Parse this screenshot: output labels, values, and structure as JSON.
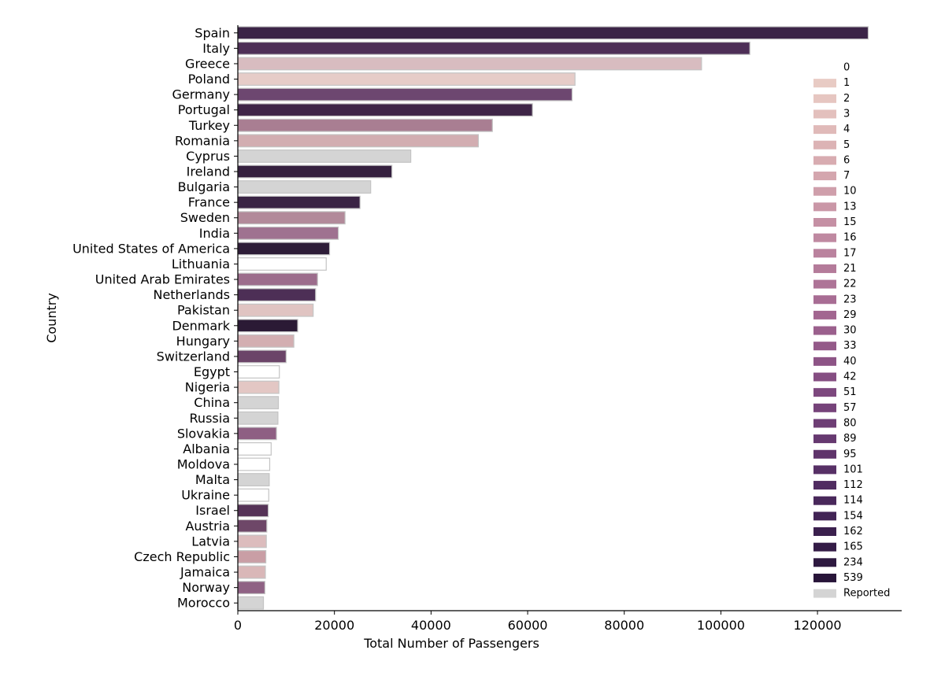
{
  "chart_data": {
    "type": "bar",
    "orientation": "horizontal",
    "xlabel": "Total Number of Passengers",
    "ylabel": "Country",
    "xlim": [
      0,
      136000
    ],
    "xticks": [
      0,
      20000,
      40000,
      60000,
      80000,
      100000,
      120000
    ],
    "xtick_labels": [
      "0",
      "20000",
      "40000",
      "60000",
      "80000",
      "100000",
      "120000"
    ],
    "grid": false,
    "legend_position": "right",
    "categories": [
      "Spain",
      "Italy",
      "Greece",
      "Poland",
      "Germany",
      "Portugal",
      "Turkey",
      "Romania",
      "Cyprus",
      "Ireland",
      "Bulgaria",
      "France",
      "Sweden",
      "India",
      "United States of America",
      "Lithuania",
      "United Arab Emirates",
      "Netherlands",
      "Pakistan",
      "Denmark",
      "Hungary",
      "Switzerland",
      "Egypt",
      "Nigeria",
      "China",
      "Russia",
      "Slovakia",
      "Albania",
      "Moldova",
      "Malta",
      "Ukraine",
      "Israel",
      "Austria",
      "Latvia",
      "Czech Republic",
      "Jamaica",
      "Norway",
      "Morocco"
    ],
    "values": [
      130500,
      106000,
      96000,
      69800,
      69200,
      61000,
      52700,
      49800,
      35800,
      31900,
      27500,
      25300,
      22200,
      20800,
      19000,
      18300,
      16500,
      16100,
      15600,
      12400,
      11600,
      10000,
      8600,
      8500,
      8400,
      8300,
      8000,
      6900,
      6600,
      6500,
      6400,
      6300,
      6000,
      5900,
      5800,
      5700,
      5600,
      5300
    ],
    "bar_colors": [
      "#3b2447",
      "#4e2f57",
      "#d8bcc0",
      "#e6ccc8",
      "#6d4770",
      "#3e2547",
      "#a97e92",
      "#d2adb1",
      "#d4d4d4",
      "#35203f",
      "#d4d4d4",
      "#3a2444",
      "#b28a9a",
      "#9f7290",
      "#2e1d38",
      "#ffffff",
      "#9c6d8c",
      "#4d2f56",
      "#e0c4c2",
      "#2b1a35",
      "#d3aeb1",
      "#6b4468",
      "#ffffff",
      "#e3c7c4",
      "#d4d4d4",
      "#d4d4d4",
      "#8e5f83",
      "#ffffff",
      "#ffffff",
      "#d4d4d4",
      "#ffffff",
      "#553357",
      "#6e4768",
      "#dcbcbd",
      "#c99ea5",
      "#d9b7b8",
      "#8f6284",
      "#d4d4d4"
    ],
    "legend": {
      "entries": [
        {
          "label": "0",
          "color": "#ffffff"
        },
        {
          "label": "1",
          "color": "#e8cbc4"
        },
        {
          "label": "2",
          "color": "#e6c6c1"
        },
        {
          "label": "3",
          "color": "#e3c0bd"
        },
        {
          "label": "4",
          "color": "#e0bab9"
        },
        {
          "label": "5",
          "color": "#dcb3b5"
        },
        {
          "label": "6",
          "color": "#d8acb1"
        },
        {
          "label": "7",
          "color": "#d4a6ae"
        },
        {
          "label": "10",
          "color": "#cf9fab"
        },
        {
          "label": "13",
          "color": "#ca97a7"
        },
        {
          "label": "15",
          "color": "#c590a4"
        },
        {
          "label": "16",
          "color": "#bf89a1"
        },
        {
          "label": "17",
          "color": "#ba829e"
        },
        {
          "label": "21",
          "color": "#b47b9a"
        },
        {
          "label": "22",
          "color": "#ae7497"
        },
        {
          "label": "23",
          "color": "#a86d94"
        },
        {
          "label": "29",
          "color": "#a26690"
        },
        {
          "label": "30",
          "color": "#9b608d"
        },
        {
          "label": "33",
          "color": "#945a89"
        },
        {
          "label": "40",
          "color": "#8d5486"
        },
        {
          "label": "42",
          "color": "#854e82"
        },
        {
          "label": "51",
          "color": "#7d487e"
        },
        {
          "label": "57",
          "color": "#76437a"
        },
        {
          "label": "80",
          "color": "#6e3e75"
        },
        {
          "label": "89",
          "color": "#663970"
        },
        {
          "label": "95",
          "color": "#5f346b"
        },
        {
          "label": "101",
          "color": "#573066"
        },
        {
          "label": "112",
          "color": "#502c61"
        },
        {
          "label": "114",
          "color": "#49285b"
        },
        {
          "label": "154",
          "color": "#422455"
        },
        {
          "label": "162",
          "color": "#3b204e"
        },
        {
          "label": "165",
          "color": "#341c47"
        },
        {
          "label": "234",
          "color": "#2e1940"
        },
        {
          "label": "539",
          "color": "#281539"
        },
        {
          "label": "Reported",
          "color": "#d4d4d4"
        }
      ]
    }
  }
}
